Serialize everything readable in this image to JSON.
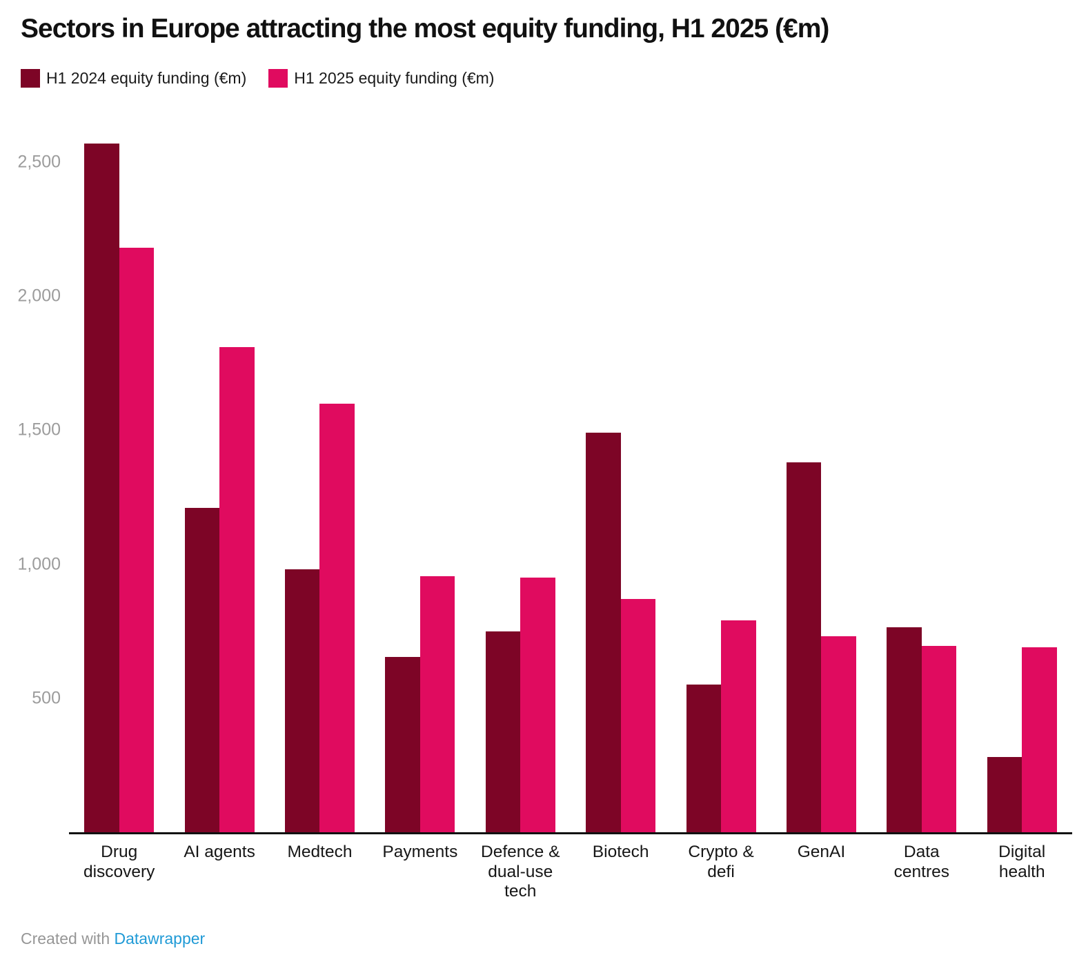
{
  "header": {
    "title": "Sectors in Europe attracting the most equity funding, H1 2025 (€m)"
  },
  "chart_data": {
    "type": "bar",
    "title": "Sectors in Europe attracting the most equity funding, H1 2025 (€m)",
    "categories": [
      "Drug discovery",
      "AI agents",
      "Medtech",
      "Payments",
      "Defence & dual-use tech",
      "Biotech",
      "Crypto & defi",
      "GenAI",
      "Data centres",
      "Digital health"
    ],
    "series": [
      {
        "name": "H1 2024 equity funding (€m)",
        "color": "#7d0526",
        "values": [
          2570,
          1210,
          980,
          655,
          750,
          1490,
          550,
          1380,
          765,
          280
        ]
      },
      {
        "name": "H1 2025 equity funding (€m)",
        "color": "#e00b5f",
        "values": [
          2180,
          1810,
          1600,
          955,
          950,
          870,
          790,
          730,
          695,
          690
        ]
      }
    ],
    "xlabel": "",
    "ylabel": "",
    "yticks": [
      500,
      1000,
      1500,
      2000,
      2500
    ],
    "ytick_labels": [
      "500",
      "1,000",
      "1,500",
      "2,000",
      "2,500"
    ],
    "ylim": [
      0,
      2600
    ],
    "grid": false,
    "legend_position": "top-left",
    "colors": {
      "h1_2024": "#7d0526",
      "h1_2025": "#e00b5f",
      "axis": "#111111",
      "tick_text": "#9c9c9c"
    }
  },
  "footer": {
    "prefix": "Created with ",
    "link": "Datawrapper",
    "link_color": "#1f9ad6"
  }
}
